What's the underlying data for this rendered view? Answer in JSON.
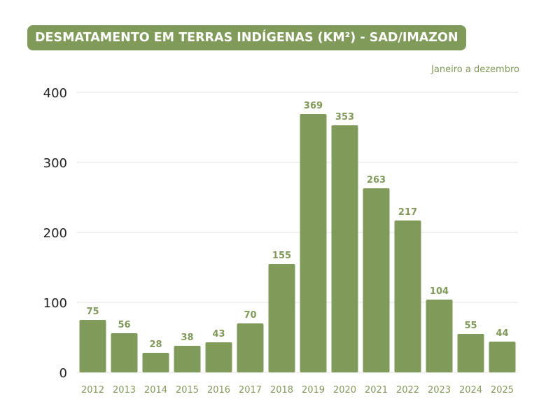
{
  "chart_data": {
    "type": "bar",
    "title": "DESMATAMENTO EM TERRAS INDÍGENAS (KM²) - SAD/IMAZON",
    "subtitle": "Janeiro a dezembro",
    "categories": [
      "2012",
      "2013",
      "2014",
      "2015",
      "2016",
      "2017",
      "2018",
      "2019",
      "2020",
      "2021",
      "2022",
      "2023",
      "2024",
      "2025"
    ],
    "values": [
      75,
      56,
      28,
      38,
      43,
      70,
      155,
      369,
      353,
      263,
      217,
      104,
      55,
      44
    ],
    "yticks": [
      0,
      100,
      200,
      300,
      400
    ],
    "ylim": [
      0,
      400
    ],
    "xlabel": "",
    "ylabel": "",
    "grid": true,
    "bar_color": "#809a5a"
  }
}
